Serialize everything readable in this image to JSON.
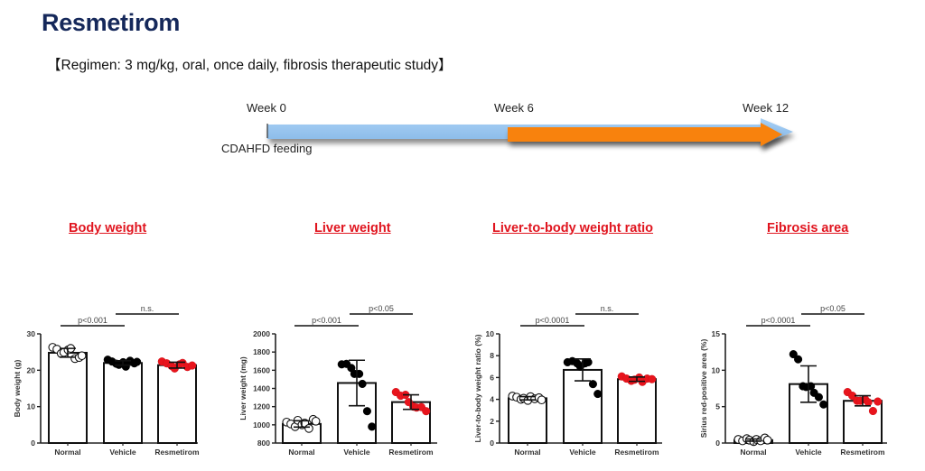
{
  "header": {
    "title": "Resmetirom",
    "regimen": "【Regimen: 3 mg/kg, oral, once daily, fibrosis therapeutic study】"
  },
  "timeline": {
    "labels": [
      "Week 0",
      "Week 6",
      "Week 12"
    ],
    "feeding_label": "CDAHFD feeding",
    "colors": {
      "feeding_arrow": "#8fc0ef",
      "treatment_arrow": "#f88208"
    }
  },
  "section_titles": [
    "Body weight",
    "Liver weight",
    "Liver-to-body weight ratio",
    "Fibrosis area"
  ],
  "colors": {
    "section_title": "#e0141e",
    "normal": "#ffffff",
    "vehicle": "#000000",
    "resmetirom": "#e8141c"
  },
  "chart_data": [
    {
      "type": "bar",
      "title": "Body weight",
      "ylabel": "Body weight (g)",
      "xlabel": "",
      "categories": [
        "Normal",
        "Vehicle",
        "Resmetirom"
      ],
      "ylim": [
        0,
        30
      ],
      "yticks": [
        0,
        10,
        20,
        30
      ],
      "means": [
        24.8,
        22.0,
        21.4
      ],
      "sd": [
        1.2,
        0.6,
        0.8
      ],
      "points": [
        [
          26.3,
          25.8,
          24.6,
          24.9,
          25.6,
          26.0,
          23.2,
          23.5,
          24.0
        ],
        [
          22.9,
          22.4,
          21.8,
          21.5,
          22.2,
          21.0,
          22.6,
          21.9,
          22.3
        ],
        [
          22.4,
          21.9,
          21.2,
          20.5,
          21.6,
          22.0,
          20.9,
          21.3
        ]
      ],
      "significance": [
        {
          "from": 0,
          "to": 1,
          "label": "p<0.001"
        },
        {
          "from": 1,
          "to": 2,
          "label": "n.s."
        }
      ]
    },
    {
      "type": "bar",
      "title": "Liver weight",
      "ylabel": "Liver weight (mg)",
      "xlabel": "",
      "categories": [
        "Normal",
        "Vehicle",
        "Resmetirom"
      ],
      "ylim": [
        800,
        2000
      ],
      "yticks": [
        800,
        1000,
        1200,
        1400,
        1600,
        1800,
        2000
      ],
      "means": [
        1010,
        1460,
        1250
      ],
      "sd": [
        35,
        250,
        80
      ],
      "points": [
        [
          1030,
          1010,
          980,
          1050,
          1000,
          1020,
          960,
          1060,
          1040
        ],
        [
          1665,
          1670,
          1625,
          1560,
          1560,
          1450,
          1150,
          980
        ],
        [
          1360,
          1320,
          1330,
          1250,
          1200,
          1190,
          1195,
          1150
        ]
      ],
      "significance": [
        {
          "from": 0,
          "to": 1,
          "label": "p<0.001"
        },
        {
          "from": 1,
          "to": 2,
          "label": "p<0.05"
        }
      ]
    },
    {
      "type": "bar",
      "title": "Liver-to-body weight ratio",
      "ylabel": "Liver-to-body weight ratio (%)",
      "xlabel": "",
      "categories": [
        "Normal",
        "Vehicle",
        "Resmetirom"
      ],
      "ylim": [
        0,
        10
      ],
      "yticks": [
        0,
        2,
        4,
        6,
        8,
        10
      ],
      "means": [
        4.1,
        6.7,
        5.85
      ],
      "sd": [
        0.15,
        1.0,
        0.2
      ],
      "points": [
        [
          4.3,
          4.2,
          4.0,
          4.1,
          3.9,
          4.25,
          4.05,
          4.15,
          3.95
        ],
        [
          7.4,
          7.5,
          7.3,
          7.0,
          7.3,
          7.4,
          5.4,
          4.5
        ],
        [
          6.1,
          5.9,
          5.7,
          5.8,
          6.0,
          5.6,
          5.9,
          5.85
        ]
      ],
      "significance": [
        {
          "from": 0,
          "to": 1,
          "label": "p<0.0001"
        },
        {
          "from": 1,
          "to": 2,
          "label": "n.s."
        }
      ]
    },
    {
      "type": "bar",
      "title": "Fibrosis area",
      "ylabel": "Sirius red-positive area (%)",
      "xlabel": "",
      "categories": [
        "Normal",
        "Vehicle",
        "Resmetirom"
      ],
      "ylim": [
        0,
        15
      ],
      "yticks": [
        0,
        5,
        10,
        15
      ],
      "means": [
        0.4,
        8.1,
        5.8
      ],
      "sd": [
        0.15,
        2.5,
        0.7
      ],
      "points": [
        [
          0.5,
          0.3,
          0.6,
          0.4,
          0.2,
          0.5,
          0.3,
          0.7,
          0.4
        ],
        [
          12.2,
          11.5,
          7.8,
          7.7,
          7.8,
          6.9,
          6.3,
          5.3
        ],
        [
          7.0,
          6.5,
          5.8,
          5.8,
          6.0,
          5.6,
          4.4,
          5.7
        ]
      ],
      "significance": [
        {
          "from": 0,
          "to": 1,
          "label": "p<0.0001"
        },
        {
          "from": 1,
          "to": 2,
          "label": "p<0.05"
        }
      ]
    }
  ]
}
